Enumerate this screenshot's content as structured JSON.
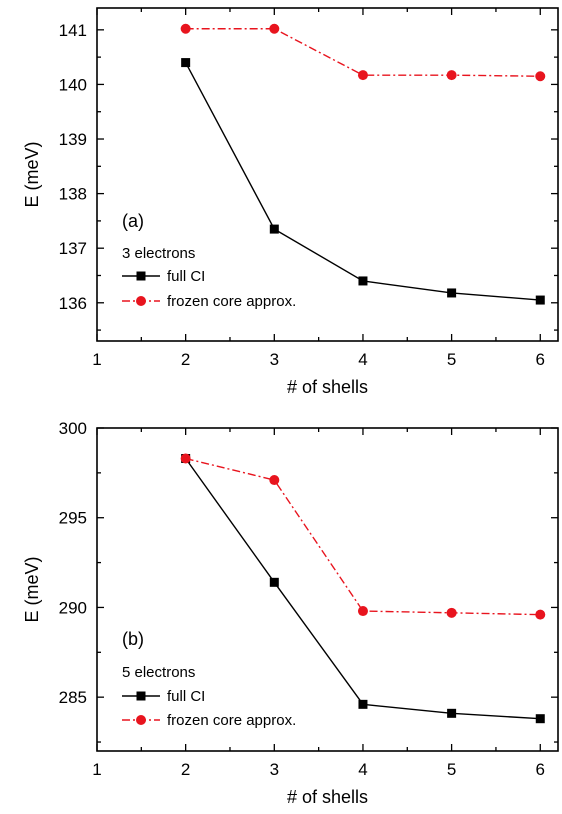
{
  "chart_data": [
    {
      "type": "line",
      "panel_label": "(a)",
      "xlabel": "# of shells",
      "ylabel": "E (meV)",
      "xlim": [
        1,
        6.2
      ],
      "ylim": [
        135.3,
        141.4
      ],
      "xticks": [
        1,
        2,
        3,
        4,
        5,
        6
      ],
      "yticks": [
        136,
        137,
        138,
        139,
        140,
        141
      ],
      "legend_title": "3 electrons",
      "legend_position": "middle-left",
      "grid": false,
      "series": [
        {
          "name": "full CI",
          "color": "#000000",
          "marker": "square",
          "line": "solid",
          "x": [
            2,
            3,
            4,
            5,
            6
          ],
          "y": [
            140.4,
            137.35,
            136.4,
            136.18,
            136.05
          ]
        },
        {
          "name": "frozen core approx.",
          "color": "#e8141e",
          "marker": "circle",
          "line": "dash-dot",
          "x": [
            2,
            3,
            4,
            5,
            6
          ],
          "y": [
            141.02,
            141.02,
            140.17,
            140.17,
            140.15
          ]
        }
      ]
    },
    {
      "type": "line",
      "panel_label": "(b)",
      "xlabel": "# of shells",
      "ylabel": "E (meV)",
      "xlim": [
        1,
        6.2
      ],
      "ylim": [
        282,
        300
      ],
      "xticks": [
        1,
        2,
        3,
        4,
        5,
        6
      ],
      "yticks": [
        285,
        290,
        295,
        300
      ],
      "legend_title": "5 electrons",
      "legend_position": "lower-left",
      "grid": false,
      "series": [
        {
          "name": "full CI",
          "color": "#000000",
          "marker": "square",
          "line": "solid",
          "x": [
            2,
            3,
            4,
            5,
            6
          ],
          "y": [
            298.3,
            291.4,
            284.6,
            284.1,
            283.8
          ]
        },
        {
          "name": "frozen core approx.",
          "color": "#e8141e",
          "marker": "circle",
          "line": "dash-dot",
          "x": [
            2,
            3,
            4,
            5,
            6
          ],
          "y": [
            298.3,
            297.1,
            289.8,
            289.7,
            289.6
          ]
        }
      ]
    }
  ]
}
